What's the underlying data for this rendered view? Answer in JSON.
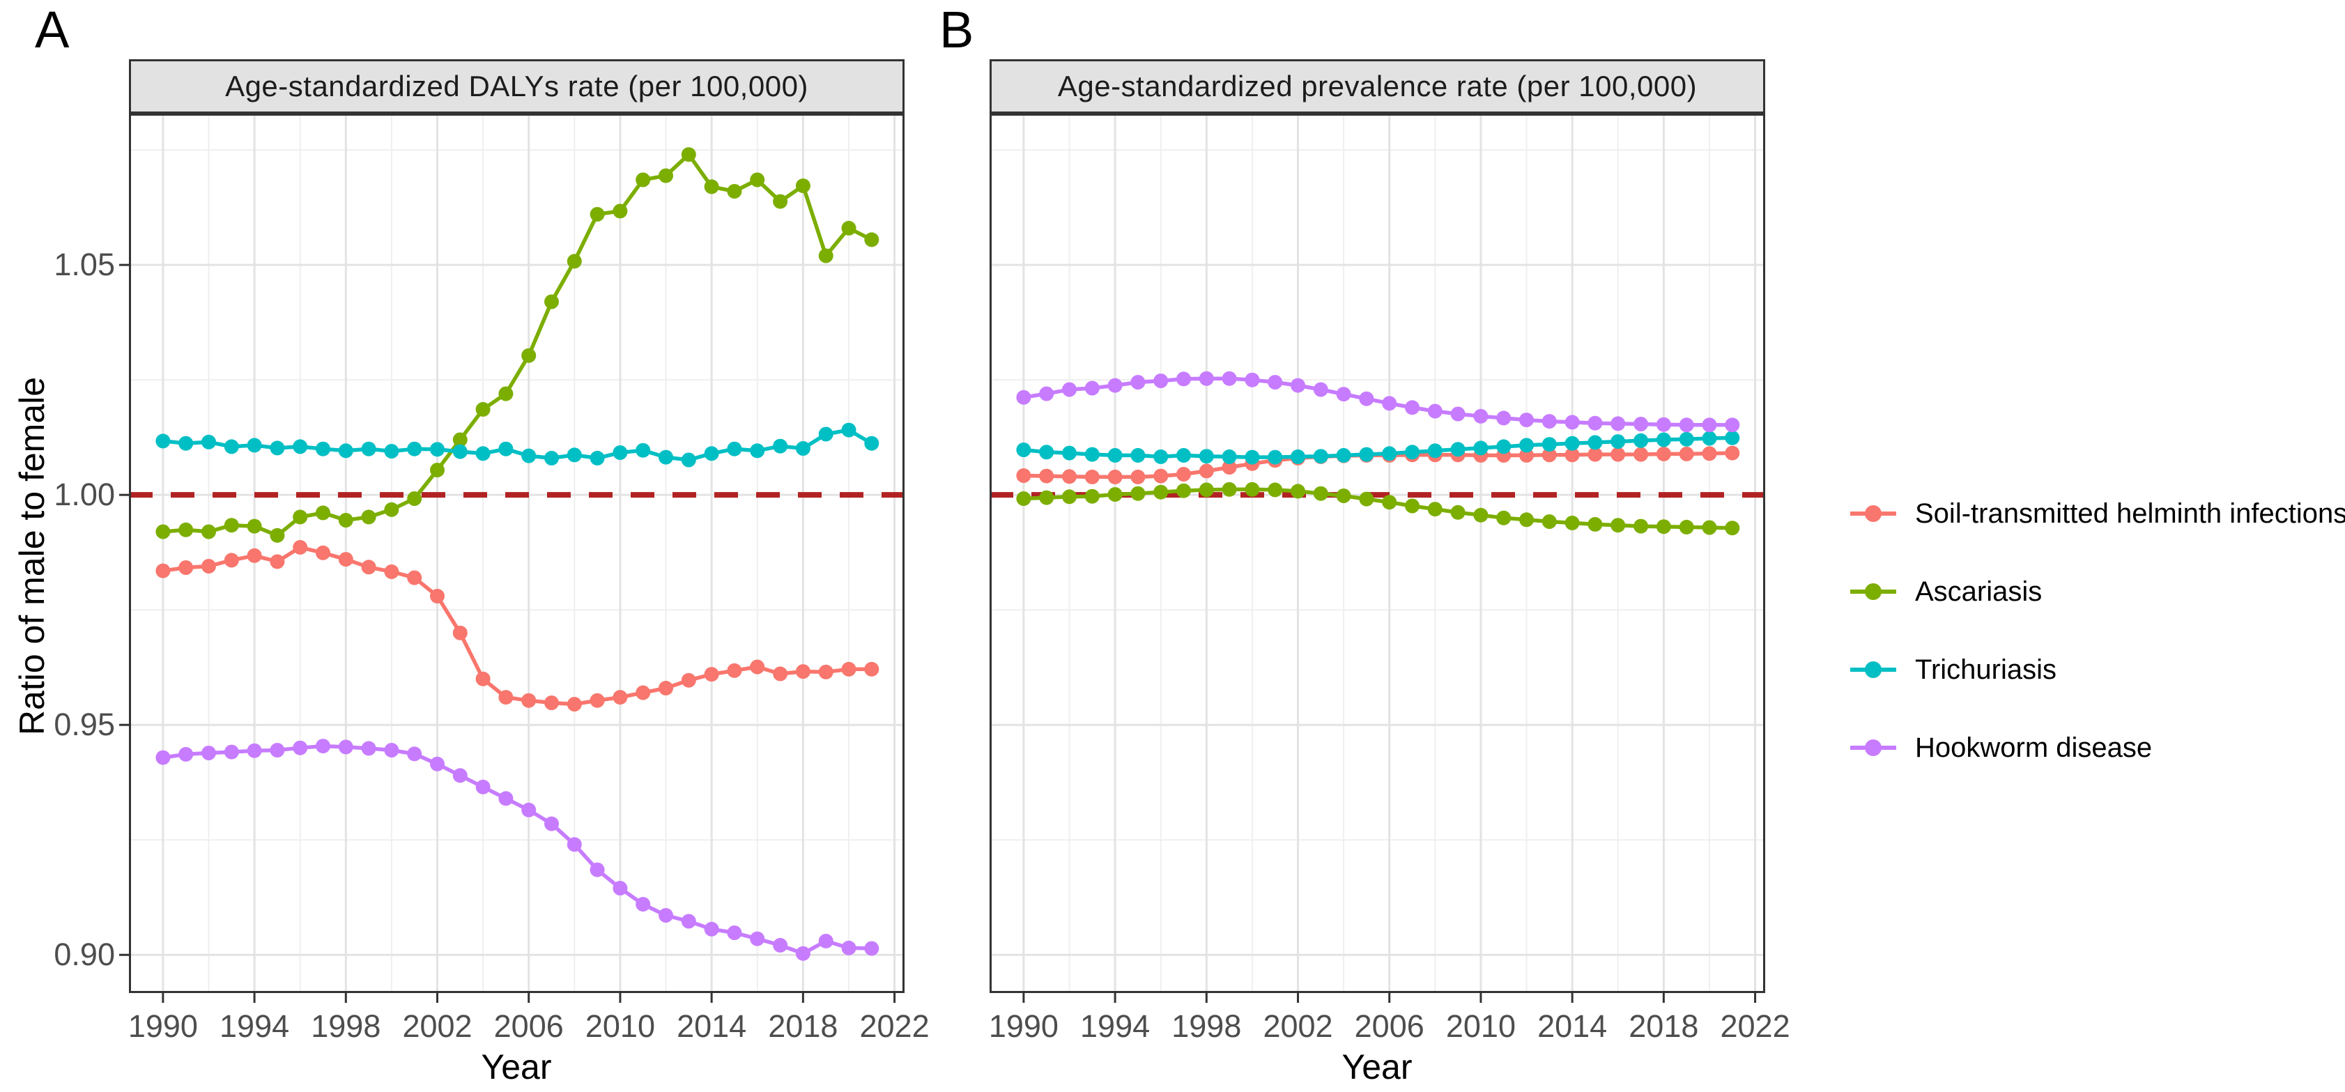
{
  "figure": {
    "panel_a_letter": "A",
    "panel_b_letter": "B",
    "y_axis_title": "Ratio of male to female",
    "x_axis_title": "Year",
    "reference_line": {
      "value": 1.0,
      "color": "#B22222",
      "style": "dashed"
    }
  },
  "legend": {
    "items": [
      {
        "label": "Soil-transmitted helminth infections",
        "color": "#F8766D"
      },
      {
        "label": "Ascariasis",
        "color": "#7CAE00"
      },
      {
        "label": "Trichuriasis",
        "color": "#00BFC4"
      },
      {
        "label": "Hookworm disease",
        "color": "#C77CFF"
      }
    ]
  },
  "chart_data": [
    {
      "type": "line",
      "panel": "A",
      "title": "Age-standardized DALYs rate (per 100,000)",
      "xlabel": "Year",
      "ylabel": "Ratio of male to female",
      "x": [
        1990,
        1991,
        1992,
        1993,
        1994,
        1995,
        1996,
        1997,
        1998,
        1999,
        2000,
        2001,
        2002,
        2003,
        2004,
        2005,
        2006,
        2007,
        2008,
        2009,
        2010,
        2011,
        2012,
        2013,
        2014,
        2015,
        2016,
        2017,
        2018,
        2019,
        2020,
        2021
      ],
      "x_ticks": [
        1990,
        1994,
        1998,
        2002,
        2006,
        2010,
        2014,
        2018,
        2022
      ],
      "x_minor_ticks": [
        1992,
        1996,
        2000,
        2004,
        2008,
        2012,
        2016,
        2020
      ],
      "y_ticks": [
        0.9,
        0.95,
        1.0,
        1.05
      ],
      "y_minor_ticks": [
        0.925,
        0.975,
        1.025,
        1.075
      ],
      "xlim": [
        1988.51,
        2022.44
      ],
      "ylim": [
        0.8917,
        1.0829
      ],
      "grid": true,
      "legend_position": "right",
      "ref_line": 1.0,
      "series": [
        {
          "name": "Soil-transmitted helminth infections",
          "color": "#F8766D",
          "values": [
            0.9835,
            0.9842,
            0.9845,
            0.9858,
            0.9868,
            0.9855,
            0.9886,
            0.9874,
            0.986,
            0.9843,
            0.9833,
            0.982,
            0.978,
            0.97,
            0.96,
            0.956,
            0.9553,
            0.9548,
            0.9545,
            0.9553,
            0.956,
            0.957,
            0.958,
            0.9597,
            0.961,
            0.9618,
            0.9626,
            0.9611,
            0.9616,
            0.9615,
            0.9621,
            0.9621
          ]
        },
        {
          "name": "Ascariasis",
          "color": "#7CAE00",
          "values": [
            0.992,
            0.9924,
            0.992,
            0.9934,
            0.9932,
            0.9912,
            0.9952,
            0.9961,
            0.9945,
            0.9952,
            0.9968,
            0.9992,
            1.0054,
            1.012,
            1.0186,
            1.022,
            1.0303,
            1.042,
            1.0508,
            1.061,
            1.0617,
            1.0685,
            1.0694,
            1.074,
            1.067,
            1.066,
            1.0685,
            1.0638,
            1.0672,
            1.052,
            1.058,
            1.0555
          ]
        },
        {
          "name": "Trichuriasis",
          "color": "#00BFC4",
          "values": [
            1.0117,
            1.0112,
            1.0115,
            1.0105,
            1.0108,
            1.0102,
            1.0105,
            1.01,
            1.0096,
            1.01,
            1.0095,
            1.01,
            1.0099,
            1.0094,
            1.009,
            1.01,
            1.0085,
            1.008,
            1.0087,
            1.008,
            1.0092,
            1.0097,
            1.0082,
            1.0076,
            1.009,
            1.01,
            1.0096,
            1.0106,
            1.0101,
            1.0132,
            1.0141,
            1.0112
          ]
        },
        {
          "name": "Hookworm disease",
          "color": "#C77CFF",
          "values": [
            0.9429,
            0.9436,
            0.9439,
            0.9441,
            0.9444,
            0.9445,
            0.945,
            0.9454,
            0.9452,
            0.9449,
            0.9445,
            0.9437,
            0.9415,
            0.939,
            0.9365,
            0.934,
            0.9315,
            0.9285,
            0.924,
            0.9185,
            0.9145,
            0.911,
            0.9086,
            0.9073,
            0.9056,
            0.9048,
            0.9035,
            0.9021,
            0.9003,
            0.903,
            0.9015,
            0.9014
          ]
        }
      ]
    },
    {
      "type": "line",
      "panel": "B",
      "title": "Age-standardized prevalence rate (per 100,000)",
      "xlabel": "Year",
      "ylabel": "Ratio of male to female",
      "x": [
        1990,
        1991,
        1992,
        1993,
        1994,
        1995,
        1996,
        1997,
        1998,
        1999,
        2000,
        2001,
        2002,
        2003,
        2004,
        2005,
        2006,
        2007,
        2008,
        2009,
        2010,
        2011,
        2012,
        2013,
        2014,
        2015,
        2016,
        2017,
        2018,
        2019,
        2020,
        2021
      ],
      "x_ticks": [
        1990,
        1994,
        1998,
        2002,
        2006,
        2010,
        2014,
        2018,
        2022
      ],
      "x_minor_ticks": [
        1992,
        1996,
        2000,
        2004,
        2008,
        2012,
        2016,
        2020
      ],
      "y_ticks": [
        0.9,
        0.95,
        1.0,
        1.05
      ],
      "y_minor_ticks": [
        0.925,
        0.975,
        1.025,
        1.075
      ],
      "xlim": [
        1988.51,
        2022.44
      ],
      "ylim": [
        0.8917,
        1.0829
      ],
      "grid": true,
      "legend_position": "right",
      "ref_line": 1.0,
      "series": [
        {
          "name": "Soil-transmitted helminth infections",
          "color": "#F8766D",
          "values": [
            1.0042,
            1.0041,
            1.004,
            1.0039,
            1.0039,
            1.0039,
            1.0041,
            1.0045,
            1.0052,
            1.006,
            1.0068,
            1.0075,
            1.008,
            1.0083,
            1.0085,
            1.0086,
            1.0086,
            1.0087,
            1.0087,
            1.0087,
            1.0086,
            1.0086,
            1.0086,
            1.0087,
            1.0087,
            1.0088,
            1.0088,
            1.0088,
            1.0089,
            1.0089,
            1.009,
            1.0091
          ]
        },
        {
          "name": "Ascariasis",
          "color": "#7CAE00",
          "values": [
            0.9992,
            0.9994,
            0.9996,
            0.9997,
            1.0001,
            1.0003,
            1.0006,
            1.0009,
            1.0011,
            1.0012,
            1.0012,
            1.0011,
            1.0008,
            1.0003,
            0.9998,
            0.9991,
            0.9984,
            0.9976,
            0.9969,
            0.9962,
            0.9956,
            0.995,
            0.9946,
            0.9942,
            0.9939,
            0.9936,
            0.9934,
            0.9932,
            0.9931,
            0.993,
            0.9929,
            0.9928
          ]
        },
        {
          "name": "Trichuriasis",
          "color": "#00BFC4",
          "values": [
            1.0098,
            1.0093,
            1.0091,
            1.0088,
            1.0086,
            1.0086,
            1.0083,
            1.0086,
            1.0084,
            1.0083,
            1.0082,
            1.0082,
            1.0083,
            1.0084,
            1.0086,
            1.0088,
            1.009,
            1.0093,
            1.0096,
            1.0099,
            1.0102,
            1.0105,
            1.0108,
            1.011,
            1.0112,
            1.0114,
            1.0116,
            1.0118,
            1.012,
            1.0121,
            1.0123,
            1.0124
          ]
        },
        {
          "name": "Hookworm disease",
          "color": "#C77CFF",
          "values": [
            1.0212,
            1.022,
            1.0229,
            1.0232,
            1.0238,
            1.0245,
            1.0248,
            1.0252,
            1.0253,
            1.0253,
            1.025,
            1.0245,
            1.0238,
            1.0229,
            1.0219,
            1.0209,
            1.0199,
            1.019,
            1.0182,
            1.0176,
            1.0171,
            1.0167,
            1.0163,
            1.016,
            1.0158,
            1.0156,
            1.0155,
            1.0154,
            1.0153,
            1.0152,
            1.0152,
            1.0152
          ]
        }
      ]
    }
  ]
}
